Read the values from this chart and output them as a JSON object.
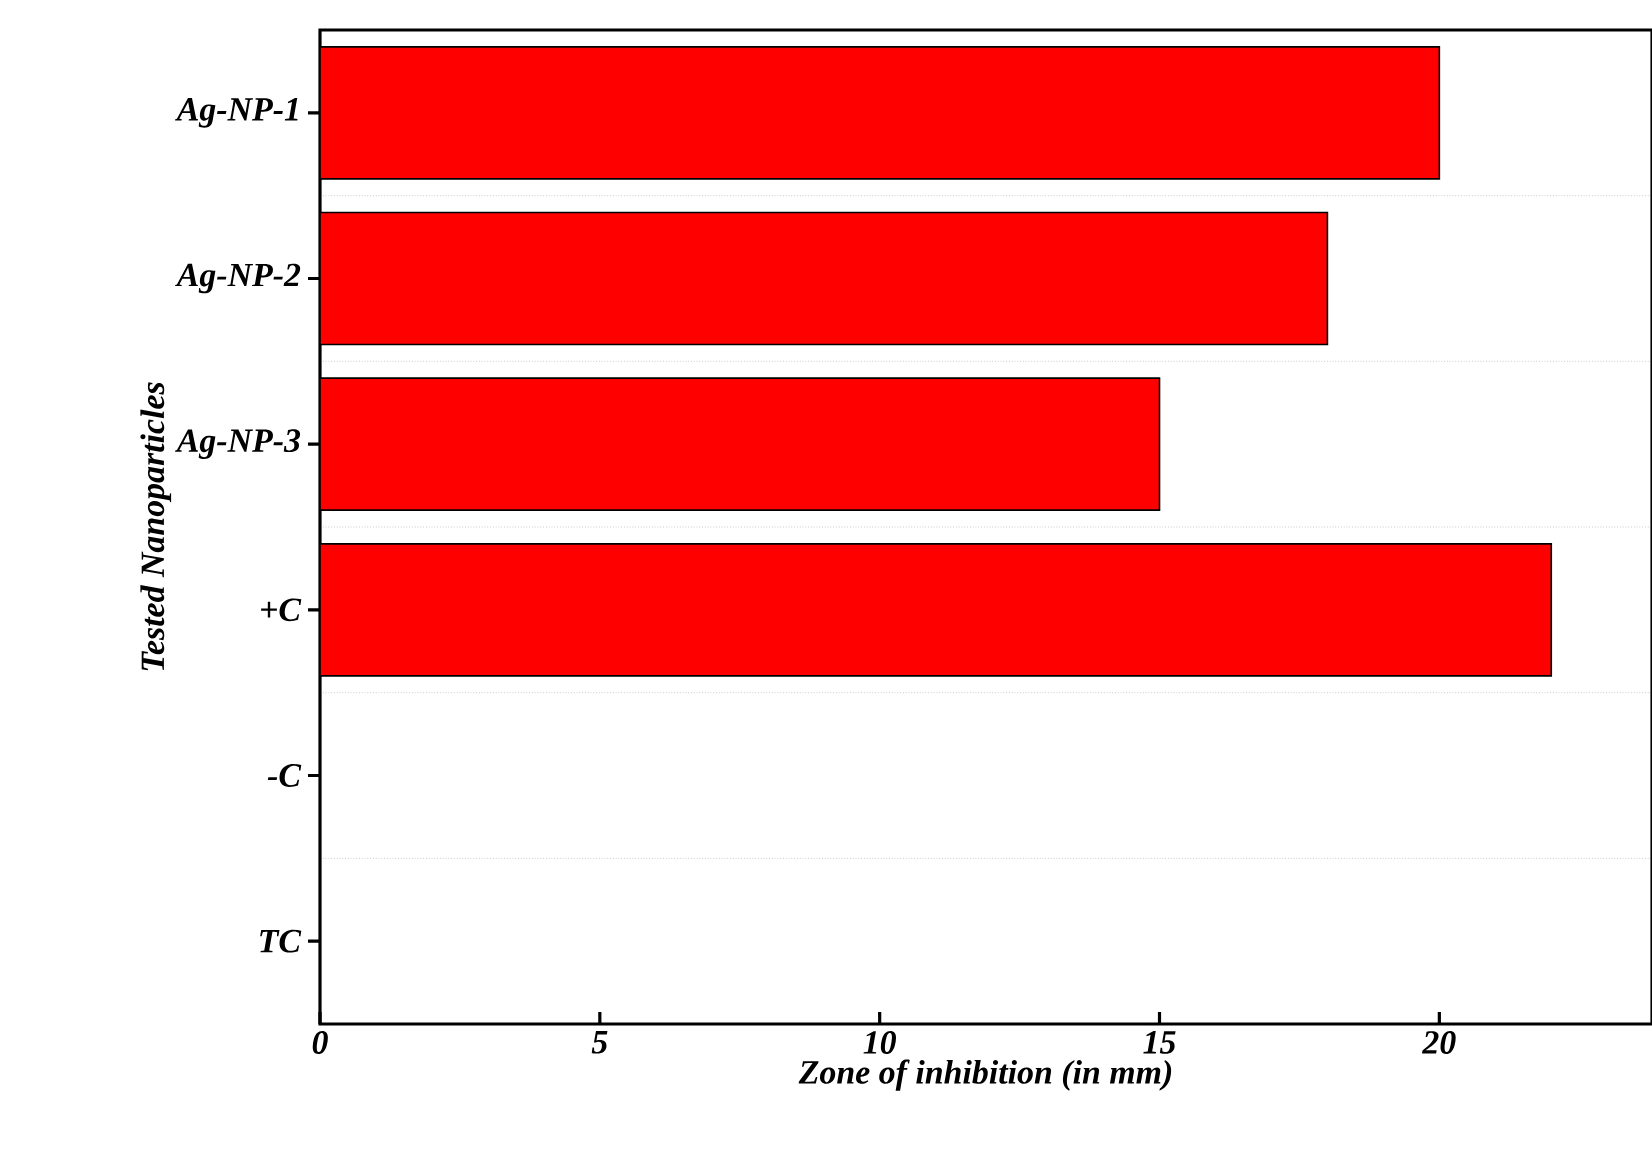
{
  "chart_data": {
    "type": "bar",
    "orientation": "horizontal",
    "xlabel": "Zone of inhibition (in mm)",
    "ylabel": "Tested Nanoparticles",
    "categories": [
      "Ag-NP-1",
      "Ag-NP-2",
      "Ag-NP-3",
      "+C",
      "-C",
      "TC"
    ],
    "values": [
      20,
      18,
      15,
      22,
      0,
      0
    ],
    "color": "#ff0000",
    "xlim": [
      0,
      23.8
    ],
    "xticks": [
      0,
      5,
      10,
      15,
      20
    ],
    "grid": "y"
  }
}
